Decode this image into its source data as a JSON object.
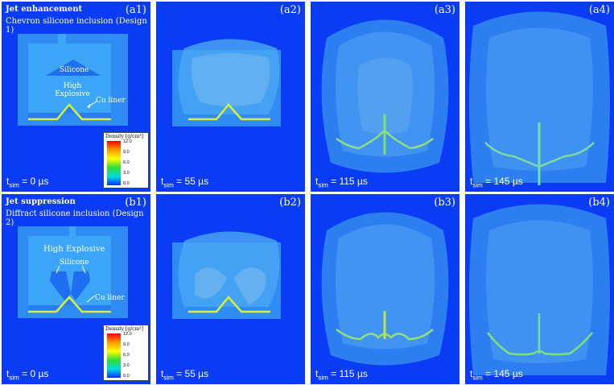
{
  "row_a": {
    "title": "Jet enhancement",
    "subtitle": "Chevron silicone inclusion (Design 1)",
    "silicone_label": "Silicone",
    "he_label": "High Explosive",
    "cu_label": "Cu liner",
    "panels": [
      {
        "label": "(a1)",
        "t_prefix": "t",
        "t_sub": "sim",
        "t_value": " = 0 µs"
      },
      {
        "label": "(a2)",
        "t_prefix": "t",
        "t_sub": "sim",
        "t_value": " = 55 µs"
      },
      {
        "label": "(a3)",
        "t_prefix": "t",
        "t_sub": "sim",
        "t_value": " = 115 µs"
      },
      {
        "label": "(a4)",
        "t_prefix": "t",
        "t_sub": "sim",
        "t_value": " = 145 µs"
      }
    ]
  },
  "row_b": {
    "title": "Jet suppression",
    "subtitle": "Diffract silicone inclusion (Design 2)",
    "silicone_label": "Silicone",
    "he_label": "High Explosive",
    "cu_label": "Cu liner",
    "panels": [
      {
        "label": "(b1)",
        "t_prefix": "t",
        "t_sub": "sim",
        "t_value": " = 0 µs"
      },
      {
        "label": "(b2)",
        "t_prefix": "t",
        "t_sub": "sim",
        "t_value": " = 55 µs"
      },
      {
        "label": "(b3)",
        "t_prefix": "t",
        "t_sub": "sim",
        "t_value": " = 115 µs"
      },
      {
        "label": "(b4)",
        "t_prefix": "t",
        "t_sub": "sim",
        "t_value": " = 145 µs"
      }
    ]
  },
  "legend": {
    "title": "Density [g/cm³]",
    "ticks": [
      "12.0",
      "9.0",
      "6.0",
      "3.0",
      "0.0"
    ]
  },
  "colors": {
    "background": "#0a3cf5",
    "charge": "#37a3f5",
    "liner": "#d7ef3a",
    "jet": "#5fe08a"
  }
}
